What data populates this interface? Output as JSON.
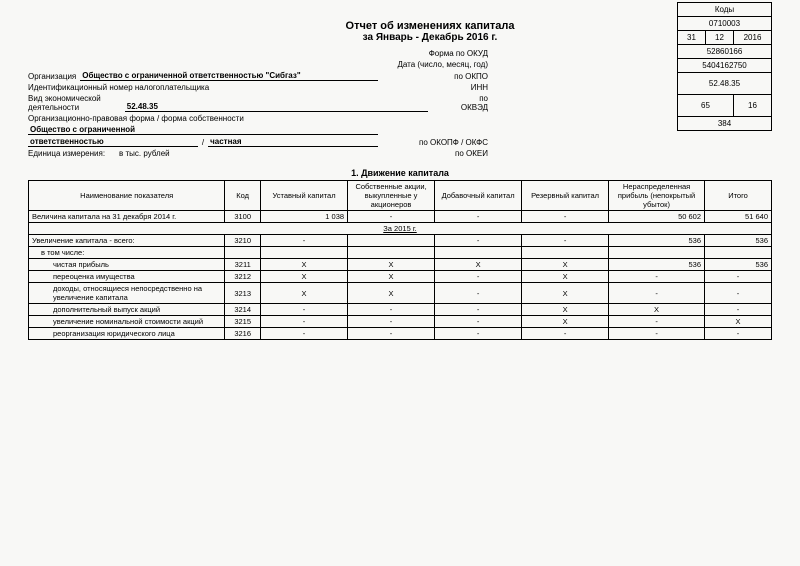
{
  "title": "Отчет об изменениях капитала",
  "subtitle": "за Январь - Декабрь 2016 г.",
  "codes_header": "Коды",
  "labels": {
    "okud": "Форма по ОКУД",
    "date": "Дата (число, месяц, год)",
    "org": "Организация",
    "okpo": "по ОКПО",
    "inn_label": "Идентификационный номер налогоплательщика",
    "inn": "ИНН",
    "activity": "Вид экономической\nдеятельности",
    "okved": "по\nОКВЭД",
    "legal_form": "Организационно-правовая форма / форма собственности",
    "okopf": "по ОКОПФ / ОКФС",
    "unit": "Единица измерения:",
    "okei": "по ОКЕИ",
    "unit_val": "в тыс. рублей"
  },
  "codes": {
    "okud": "0710003",
    "date_d": "31",
    "date_m": "12",
    "date_y": "2016",
    "okpo": "52860166",
    "inn": "5404162750",
    "okved": "52.48.35",
    "okopf": "65",
    "okfs": "16",
    "okei": "384"
  },
  "org_name": "Общество с ограниченной ответственностью \"Сибгаз\"",
  "activity_val": "52.48.35",
  "legal_form_val1": "Общество с ограниченной",
  "legal_form_val2": "ответственностью",
  "legal_form_val3": "частная",
  "section1_title": "1. Движение капитала",
  "columns": {
    "name": "Наименование показателя",
    "code": "Код",
    "c1": "Уставный капитал",
    "c2": "Собственные акции, выкупленные у акционеров",
    "c3": "Добавочный капитал",
    "c4": "Резервный капитал",
    "c5": "Нераспределенная прибыль (непокрытый убыток)",
    "c6": "Итого"
  },
  "rows": [
    {
      "name": "Величина капитала на 31 декабря 2014 г.",
      "code": "3100",
      "c1": "1 038",
      "c2": "-",
      "c3": "-",
      "c4": "-",
      "c5": "50 602",
      "c6": "51 640",
      "indent": 0
    },
    {
      "name": "За 2015 г.",
      "header": true
    },
    {
      "name": "Увеличение капитала - всего:",
      "code": "3210",
      "c1": "-",
      "c2": "",
      "c3": "-",
      "c4": "-",
      "c5": "536",
      "c6": "536",
      "indent": 0
    },
    {
      "name": "в том числе:",
      "sub": true
    },
    {
      "name": "чистая прибыль",
      "code": "3211",
      "c1": "X",
      "c2": "X",
      "c3": "X",
      "c4": "X",
      "c5": "536",
      "c6": "536",
      "indent": 2
    },
    {
      "name": "переоценка имущества",
      "code": "3212",
      "c1": "X",
      "c2": "X",
      "c3": "-",
      "c4": "X",
      "c5": "-",
      "c6": "-",
      "indent": 2
    },
    {
      "name": "доходы, относящиеся непосредственно на увеличение капитала",
      "code": "3213",
      "c1": "X",
      "c2": "X",
      "c3": "-",
      "c4": "X",
      "c5": "-",
      "c6": "-",
      "indent": 2
    },
    {
      "name": "дополнительный выпуск акций",
      "code": "3214",
      "c1": "-",
      "c2": "-",
      "c3": "-",
      "c4": "X",
      "c5": "X",
      "c6": "-",
      "indent": 2
    },
    {
      "name": "увеличение номинальной стоимости акций",
      "code": "3215",
      "c1": "-",
      "c2": "-",
      "c3": "-",
      "c4": "X",
      "c5": "-",
      "c6": "X",
      "indent": 2
    },
    {
      "name": "реорганизация юридического лица",
      "code": "3216",
      "c1": "-",
      "c2": "-",
      "c3": "-",
      "c4": "-",
      "c5": "-",
      "c6": "-",
      "indent": 2
    }
  ]
}
